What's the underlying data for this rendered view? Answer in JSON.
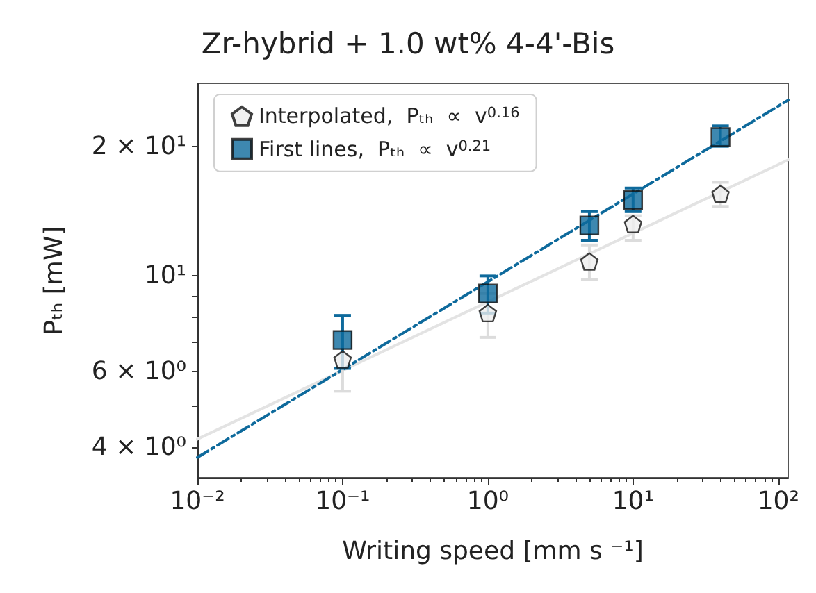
{
  "chart_data": {
    "type": "scatter",
    "title": "Zr-hybrid + 1.0 wt% 4-4'-Bis",
    "xlabel": "Writing speed [mm s ⁻¹]",
    "ylabel": "Pₜₕ [mW]",
    "log": "xy",
    "grid": false,
    "legend": "top left",
    "xlim": [
      0.01,
      117
    ],
    "ylim": [
      3.4,
      28
    ],
    "xticks": [
      {
        "value": 0.01,
        "label": "10⁻²"
      },
      {
        "value": 0.1,
        "label": "10⁻¹"
      },
      {
        "value": 1,
        "label": "10⁰"
      },
      {
        "value": 10,
        "label": "10¹"
      },
      {
        "value": 100,
        "label": "10²"
      }
    ],
    "yticks": [
      {
        "value": 4,
        "label": "4 × 10⁰"
      },
      {
        "value": 5,
        "label": null
      },
      {
        "value": 6,
        "label": "6 × 10⁰"
      },
      {
        "value": 7,
        "label": null
      },
      {
        "value": 8,
        "label": null
      },
      {
        "value": 9,
        "label": null
      },
      {
        "value": 10,
        "label": "10¹"
      },
      {
        "value": 20,
        "label": "2 × 10¹"
      }
    ],
    "series": [
      {
        "type": "line",
        "x": [
          0.01,
          117
        ],
        "values": [
          4.18,
          18.6
        ],
        "color": "#e3e3e3",
        "line_style": "solid",
        "marker": "none"
      },
      {
        "type": "line",
        "x": [
          0.01,
          117
        ],
        "values": [
          3.79,
          25.6
        ],
        "color": "#0e6a9c",
        "line_style": "dashdot",
        "marker": "none"
      },
      {
        "name": "Interpolated,  Pₜₕ  ∝  v$^{0.16}$",
        "x": [
          0.1,
          1,
          5,
          10,
          40
        ],
        "values": [
          6.4,
          8.2,
          10.8,
          13.2,
          15.5
        ],
        "errors": [
          [
            5.4,
            7.4
          ],
          [
            7.2,
            9.1
          ],
          [
            9.8,
            11.8
          ],
          [
            12.1,
            13.8
          ],
          [
            14.5,
            16.5
          ]
        ],
        "color": "#eeeeee"
      },
      {
        "name": "First lines,  Pₜₕ  ∝  v$^{0.21}$",
        "x": [
          0.1,
          1,
          5,
          10,
          40
        ],
        "values": [
          7.1,
          9.1,
          13.1,
          15.0,
          21.0
        ],
        "errors": [
          [
            6.1,
            8.1
          ],
          [
            8.2,
            10.0
          ],
          [
            12.1,
            14.1
          ],
          [
            14.1,
            16.0
          ],
          [
            20.0,
            22.3
          ]
        ],
        "color": "#0e6a9c",
        "marker": "square"
      }
    ]
  }
}
